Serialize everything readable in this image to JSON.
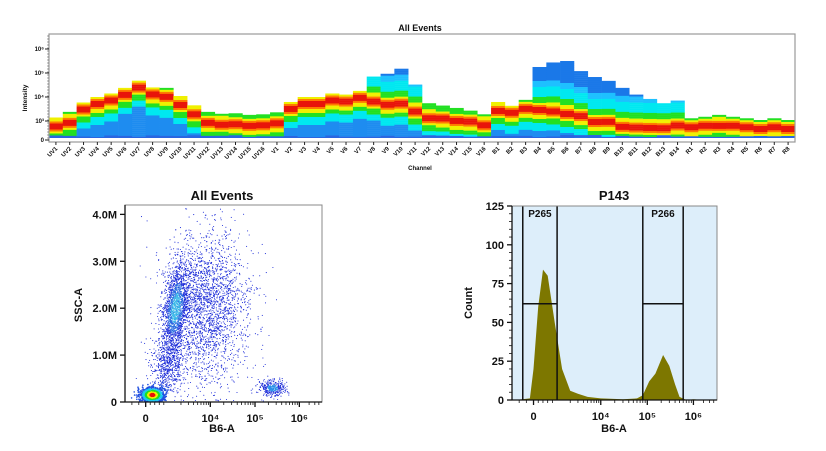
{
  "colors": {
    "low_blue": "#1a78e8",
    "cyan": "#00e8f0",
    "green": "#22e022",
    "yellow": "#f0f000",
    "red": "#e8140a",
    "hist_fill": "#7d7700",
    "gate_bg": "#ddeefa",
    "dot_blue": "#1a2ad8"
  },
  "chart_data": [
    {
      "type": "heatmap",
      "title": "All Events",
      "xlabel": "Channel",
      "ylabel": "Intensity",
      "yscale": "logicle",
      "ytick_labels": [
        "10⁶",
        "10⁵",
        "10⁴",
        "10³",
        "0"
      ],
      "ytick_values": [
        1000000,
        100000,
        10000,
        1000,
        0
      ],
      "grid": false,
      "categories": [
        "UV1",
        "UV2",
        "UV3",
        "UV4",
        "UV5",
        "UV6",
        "UV7",
        "UV8",
        "UV9",
        "UV10",
        "UV11",
        "UV12",
        "UV13",
        "UV14",
        "UV15",
        "UV16",
        "V1",
        "V2",
        "V3",
        "V4",
        "V5",
        "V6",
        "V7",
        "V8",
        "V9",
        "V10",
        "V11",
        "V12",
        "V13",
        "V14",
        "V15",
        "V16",
        "B1",
        "B2",
        "B3",
        "B4",
        "B5",
        "B6",
        "B7",
        "B8",
        "B9",
        "B10",
        "B11",
        "B12",
        "B13",
        "B14",
        "R1",
        "R2",
        "R3",
        "R4",
        "R5",
        "R6",
        "R7",
        "R8"
      ],
      "max_intensity": [
        1400,
        2400,
        5900,
        10000,
        14000,
        24000,
        48000,
        25000,
        24000,
        11000,
        4500,
        2400,
        2000,
        2100,
        1800,
        1900,
        2300,
        6200,
        10000,
        10000,
        14000,
        12600,
        18000,
        71000,
        93000,
        151000,
        33000,
        5500,
        4400,
        3500,
        2700,
        1900,
        6200,
        4300,
        7600,
        178000,
        275000,
        316000,
        120000,
        68000,
        47000,
        24000,
        12600,
        8300,
        5500,
        7100,
        1300,
        1500,
        1800,
        1500,
        1300,
        1100,
        1300,
        1100
      ],
      "peak_intensity": [
        600,
        900,
        3200,
        5000,
        7000,
        12600,
        25000,
        12600,
        10000,
        5000,
        2000,
        800,
        700,
        700,
        600,
        650,
        800,
        3200,
        5000,
        5000,
        7000,
        6300,
        8900,
        7000,
        4500,
        5000,
        2500,
        1400,
        1200,
        1000,
        900,
        700,
        2800,
        2000,
        3200,
        2800,
        2500,
        2000,
        1600,
        900,
        900,
        600,
        500,
        500,
        500,
        600,
        500,
        550,
        650,
        550,
        500,
        400,
        500,
        400
      ]
    },
    {
      "type": "scatter",
      "title": "All Events",
      "xlabel": "B6-A",
      "ylabel": "SSC-A",
      "xscale": "logicle",
      "xtick_labels": [
        "0",
        "10⁴",
        "10⁵",
        "10⁶"
      ],
      "xtick_values": [
        0,
        10000,
        100000,
        1000000
      ],
      "ytick_labels": [
        "0",
        "1.0M",
        "2.0M",
        "3.0M",
        "4.0M"
      ],
      "ytick_values": [
        0,
        1000000,
        2000000,
        3000000,
        4000000
      ],
      "ylim": [
        0,
        4200000
      ],
      "populations": [
        {
          "x_center": 300,
          "y_center": 150000,
          "events": 1200
        },
        {
          "x_center": 1500,
          "y_center": 2000000,
          "events": 1500
        },
        {
          "x_center": 8000,
          "y_center": 2000000,
          "events": 2500
        },
        {
          "x_center": 1000,
          "y_center": 800000,
          "events": 600
        },
        {
          "x_center": 250000,
          "y_center": 300000,
          "events": 350
        }
      ]
    },
    {
      "type": "area",
      "title": "P143",
      "xlabel": "B6-A",
      "ylabel": "Count",
      "xscale": "logicle",
      "xtick_labels": [
        "0",
        "10⁴",
        "10⁵",
        "10⁶"
      ],
      "xtick_values": [
        0,
        10000,
        100000,
        1000000
      ],
      "ytick_labels": [
        "0",
        "25",
        "50",
        "75",
        "100",
        "125"
      ],
      "ytick_values": [
        0,
        25,
        50,
        75,
        100,
        125
      ],
      "ylim": [
        0,
        125
      ],
      "x": [
        -2500,
        -500,
        0,
        200,
        400,
        600,
        900,
        1300,
        2000,
        3000,
        5000,
        10000,
        30000,
        60000,
        80000,
        110000,
        150000,
        220000,
        300000,
        400000,
        500000,
        700000,
        1000000,
        2000000
      ],
      "y": [
        0,
        1,
        20,
        60,
        84,
        80,
        50,
        20,
        6,
        4,
        2,
        1,
        0.5,
        1,
        3,
        12,
        17,
        29,
        22,
        10,
        2,
        0,
        0.5,
        0
      ],
      "gates": [
        {
          "name": "P265",
          "x_range": [
            -1500,
            1000
          ],
          "level": 62
        },
        {
          "name": "P266",
          "x_range": [
            80000,
            600000
          ],
          "level": 62
        }
      ]
    }
  ]
}
